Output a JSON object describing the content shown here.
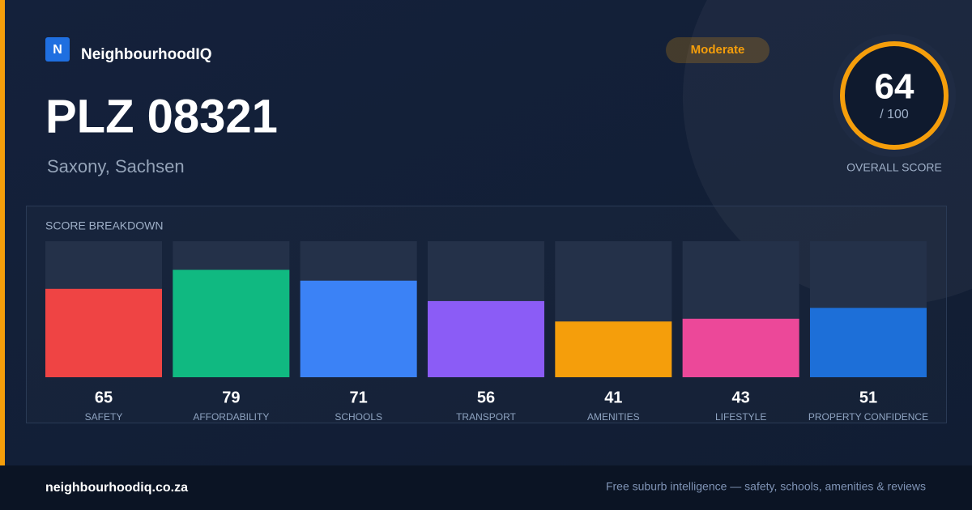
{
  "brand": {
    "logo": "N",
    "name": "NeighbourhoodIQ"
  },
  "badge": "Moderate",
  "title": "PLZ 08321",
  "subtitle": "Saxony, Sachsen",
  "score": {
    "value": 64,
    "out_of": {
      "value": 100,
      "label": "/ 100"
    },
    "caption": "OVERALL SCORE"
  },
  "breakdown": {
    "title": "SCORE BREAKDOWN",
    "items": [
      {
        "label": "SAFETY",
        "value": 65,
        "color": "#ef4444"
      },
      {
        "label": "AFFORDABILITY",
        "value": 79,
        "color": "#10b981"
      },
      {
        "label": "SCHOOLS",
        "value": 71,
        "color": "#3b82f6"
      },
      {
        "label": "TRANSPORT",
        "value": 56,
        "color": "#8b5cf6"
      },
      {
        "label": "AMENITIES",
        "value": 41,
        "color": "#f59e0b"
      },
      {
        "label": "LIFESTYLE",
        "value": 43,
        "color": "#ec4899"
      },
      {
        "label": "PROPERTY CONFIDENCE",
        "value": 51,
        "color": "#1d6fd8"
      }
    ]
  },
  "footer": {
    "site": "neighbourhoodiq.co.za",
    "tagline": "Free suburb intelligence — safety, schools, amenities & reviews"
  }
}
